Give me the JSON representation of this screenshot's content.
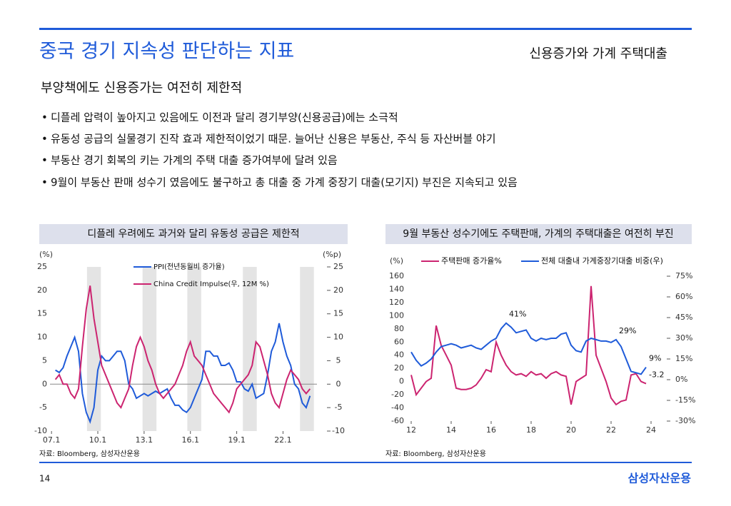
{
  "header": {
    "title": "중국 경기 지속성 판단하는 지표",
    "section": "신용증가와 가계 주택대출",
    "subtitle": "부양책에도 신용증가는 여전히 제한적"
  },
  "bullets": [
    "디플레 압력이 높아지고 있음에도 이전과 달리 경기부양(신용공급)에는 소극적",
    "유동성 공급의 실물경기 진작 효과 제한적이었기 때문. 늘어난 신용은 부동산, 주식 등 자산버블 야기",
    "부동산 경기 회복의 키는 가계의 주택 대출 증가여부에 달려 있음",
    "9월이 부동산 판매 성수기 였음에도 불구하고 총 대출 중 가계 중장기 대출(모기지) 부진은 지속되고 있음"
  ],
  "chart_data": [
    {
      "type": "line",
      "panel_title": "디플레 우려에도 과거와 달리 유동성 공급은 제한적",
      "source": "자료: Bloomberg, 삼성자산운용",
      "ylabel": "(%)",
      "y2label": "(%p)",
      "x": [
        2007.25,
        2007.5,
        2007.75,
        2008,
        2008.25,
        2008.5,
        2008.75,
        2009,
        2009.25,
        2009.5,
        2009.75,
        2010,
        2010.25,
        2010.5,
        2010.75,
        2011,
        2011.25,
        2011.5,
        2011.75,
        2012,
        2012.25,
        2012.5,
        2012.75,
        2013,
        2013.25,
        2013.5,
        2013.75,
        2014,
        2014.25,
        2014.5,
        2014.75,
        2015,
        2015.25,
        2015.5,
        2015.75,
        2016,
        2016.25,
        2016.5,
        2016.75,
        2017,
        2017.25,
        2017.5,
        2017.75,
        2018,
        2018.25,
        2018.5,
        2018.75,
        2019,
        2019.25,
        2019.5,
        2019.75,
        2020,
        2020.25,
        2020.5,
        2020.75,
        2021,
        2021.25,
        2021.5,
        2021.75,
        2022,
        2022.25,
        2022.5,
        2022.75,
        2023,
        2023.25,
        2023.5,
        2023.75
      ],
      "xlim": [
        2006.9,
        2024.2
      ],
      "xticks": [
        {
          "value": 2007,
          "label": "07.1"
        },
        {
          "value": 2010,
          "label": "10.1"
        },
        {
          "value": 2013,
          "label": "13.1"
        },
        {
          "value": 2016,
          "label": "16.1"
        },
        {
          "value": 2019,
          "label": "19.1"
        },
        {
          "value": 2022,
          "label": "22.1"
        }
      ],
      "ylim": [
        -10,
        25
      ],
      "yticks": [
        -10,
        -5,
        0,
        5,
        10,
        15,
        20,
        25
      ],
      "y2lim": [
        -10,
        25
      ],
      "y2ticks": [
        -10,
        -5,
        0,
        5,
        10,
        15,
        20,
        25
      ],
      "zero_line": true,
      "shaded_ranges": [
        [
          2009.3,
          2010.2
        ],
        [
          2012.9,
          2013.8
        ],
        [
          2015.8,
          2016.7
        ],
        [
          2019.4,
          2020.3
        ],
        [
          2023.1,
          2024.0
        ]
      ],
      "series": [
        {
          "name": "PPI(전년동월비 증가율)",
          "color": "#1f5bd9",
          "axis": "y",
          "values": [
            3,
            2.5,
            3.5,
            6,
            8,
            10,
            7,
            -2,
            -6,
            -8,
            -5,
            3,
            6,
            5,
            5,
            6,
            7,
            7,
            5,
            0,
            -1,
            -3,
            -2.5,
            -2,
            -2.5,
            -2,
            -1.5,
            -2,
            -1.5,
            -1,
            -3,
            -4.5,
            -4.5,
            -5.5,
            -6,
            -5,
            -3,
            -1,
            1,
            7,
            7,
            6,
            6,
            4,
            4,
            4.5,
            3,
            0.5,
            0.5,
            -1,
            -1.5,
            0,
            -3,
            -2.5,
            -2,
            2,
            7,
            9,
            13,
            9,
            6,
            4,
            0,
            -1,
            -4,
            -5,
            -2.5
          ]
        },
        {
          "name": "China Credit Impulse(우, 12M %)",
          "color": "#cc2470",
          "axis": "y2",
          "values": [
            1,
            2,
            0,
            0,
            -2,
            -3,
            -1,
            8,
            16,
            21,
            14,
            9,
            4,
            2,
            0,
            -2,
            -4,
            -5,
            -3,
            -1,
            4,
            8,
            10,
            8,
            5,
            3,
            0,
            -2,
            -3,
            -2,
            -1,
            0,
            2,
            4,
            7,
            9,
            6,
            5,
            4,
            2,
            0,
            -2,
            -3,
            -4,
            -5,
            -6,
            -4,
            -1,
            0,
            1,
            2,
            4,
            9,
            8,
            5,
            2,
            -2,
            -4,
            -5,
            -2,
            1,
            3,
            2,
            1,
            -1,
            -2,
            -1
          ]
        }
      ]
    },
    {
      "type": "line",
      "panel_title": "9월 부동산 성수기에도 주택판매, 가계의 주택대출은 여전히 부진",
      "source": "자료: Bloomberg, 삼성자산운용",
      "ylabel": "(%)",
      "x": [
        12,
        12.25,
        12.5,
        12.75,
        13,
        13.25,
        13.5,
        13.75,
        14,
        14.25,
        14.5,
        14.75,
        15,
        15.25,
        15.5,
        15.75,
        16,
        16.25,
        16.5,
        16.75,
        17,
        17.25,
        17.5,
        17.75,
        18,
        18.25,
        18.5,
        18.75,
        19,
        19.25,
        19.5,
        19.75,
        20,
        20.25,
        20.5,
        20.75,
        21,
        21.25,
        21.5,
        21.75,
        22,
        22.25,
        22.5,
        22.75,
        23,
        23.25,
        23.5,
        23.75
      ],
      "xlim": [
        12,
        24
      ],
      "xticks": [
        12,
        14,
        16,
        18,
        20,
        22,
        24
      ],
      "ylim": [
        -60,
        160
      ],
      "yticks": [
        -60,
        -40,
        -20,
        0,
        20,
        40,
        60,
        80,
        100,
        120,
        140,
        160
      ],
      "y2lim": [
        -30,
        75
      ],
      "y2ticks": [
        {
          "value": -30,
          "label": "-30%"
        },
        {
          "value": -15,
          "label": "-15%"
        },
        {
          "value": 0,
          "label": "0%"
        },
        {
          "value": 15,
          "label": "15%"
        },
        {
          "value": 30,
          "label": "30%"
        },
        {
          "value": 45,
          "label": "45%"
        },
        {
          "value": 60,
          "label": "60%"
        },
        {
          "value": 75,
          "label": "75%"
        }
      ],
      "series": [
        {
          "name": "주택판매 증가율%",
          "color": "#cc2470",
          "axis": "y",
          "values": [
            10,
            -20,
            -10,
            0,
            5,
            85,
            55,
            40,
            25,
            -10,
            -12,
            -12,
            -10,
            -5,
            5,
            18,
            15,
            60,
            40,
            25,
            15,
            10,
            12,
            8,
            15,
            10,
            12,
            5,
            12,
            15,
            10,
            8,
            -35,
            0,
            5,
            10,
            145,
            40,
            20,
            0,
            -25,
            -35,
            -30,
            -28,
            10,
            12,
            0,
            -3.2
          ],
          "value_labels": [
            null,
            null,
            null,
            null,
            null,
            null,
            null,
            null,
            null,
            null,
            null,
            null,
            null,
            null,
            null,
            null,
            null,
            null,
            null,
            null,
            null,
            null,
            null,
            null,
            null,
            null,
            null,
            null,
            null,
            null,
            null,
            null,
            null,
            null,
            null,
            null,
            null,
            null,
            null,
            null,
            null,
            null,
            null,
            null,
            null,
            null,
            null,
            "-3.2"
          ]
        },
        {
          "name": "전체 대출내 가계중장기대출 비중(우)",
          "color": "#1f5bd9",
          "axis": "y2",
          "values": [
            20,
            14,
            10,
            12,
            15,
            20,
            24,
            25,
            26,
            25,
            23,
            24,
            25,
            23,
            22,
            25,
            28,
            30,
            37,
            41,
            38,
            34,
            35,
            36,
            30,
            28,
            30,
            29,
            30,
            30,
            33,
            34,
            25,
            21,
            20,
            28,
            30,
            29,
            28,
            28,
            27,
            29,
            24,
            15,
            6,
            5,
            4,
            9
          ],
          "value_labels": [
            null,
            null,
            null,
            null,
            null,
            null,
            null,
            null,
            null,
            null,
            null,
            null,
            null,
            null,
            null,
            null,
            null,
            null,
            null,
            "41%",
            null,
            null,
            null,
            null,
            null,
            null,
            null,
            null,
            null,
            null,
            null,
            null,
            null,
            null,
            null,
            null,
            null,
            null,
            null,
            null,
            null,
            "29%",
            null,
            null,
            null,
            null,
            null,
            "9%"
          ]
        }
      ]
    }
  ],
  "footer": {
    "page": "14",
    "logo": "삼성자산운용"
  }
}
